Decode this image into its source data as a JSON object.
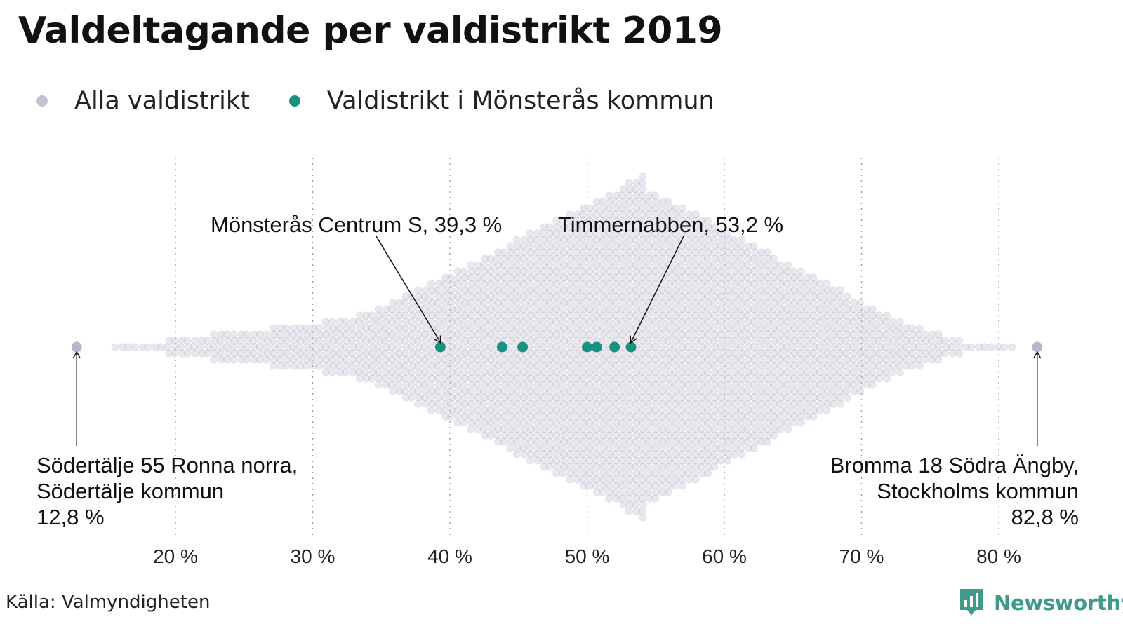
{
  "title": "Valdeltagande per valdistrikt 2019",
  "legend": [
    {
      "label": "Alla valdistrikt",
      "color": "#c4c2d2"
    },
    {
      "label": "Valdistrikt i Mönsterås kommun",
      "color": "#1a9080"
    }
  ],
  "chart_data": {
    "type": "scatter",
    "subtype": "beeswarm",
    "xlim": [
      12,
      84
    ],
    "x_ticks": [
      "20 %",
      "30 %",
      "40 %",
      "50 %",
      "60 %",
      "70 %",
      "80 %"
    ],
    "x_tick_values": [
      20,
      30,
      40,
      50,
      60,
      70,
      80
    ],
    "grid": "vertical dotted",
    "legend_position": "top-left",
    "series": [
      {
        "name": "Alla valdistrikt",
        "color": "#c4c2d2",
        "distribution": {
          "min": 12.8,
          "mode": 54,
          "max": 82.8
        }
      },
      {
        "name": "Valdistrikt i Mönsterås kommun",
        "color": "#1a9080",
        "values": [
          39.3,
          43.8,
          45.3,
          50.0,
          50.7,
          52.0,
          53.2
        ]
      }
    ],
    "annotations": [
      {
        "x": 39.3,
        "lines": [
          "Mönsterås Centrum S, 39,3 %"
        ]
      },
      {
        "x": 53.2,
        "lines": [
          "Timmernabben, 53,2 %"
        ]
      },
      {
        "x": 12.8,
        "lines": [
          "Södertälje 55 Ronna norra,",
          "Södertälje kommun",
          "12,8 %"
        ]
      },
      {
        "x": 82.8,
        "lines": [
          "Bromma 18 Södra Ängby,",
          "Stockholms kommun",
          "82,8 %"
        ]
      }
    ]
  },
  "source": "Källa: Valmyndigheten",
  "logo": {
    "text": "Newsworthy",
    "color": "#3e9a8a",
    "icon": "bar-chart-speech-bubble-icon"
  }
}
